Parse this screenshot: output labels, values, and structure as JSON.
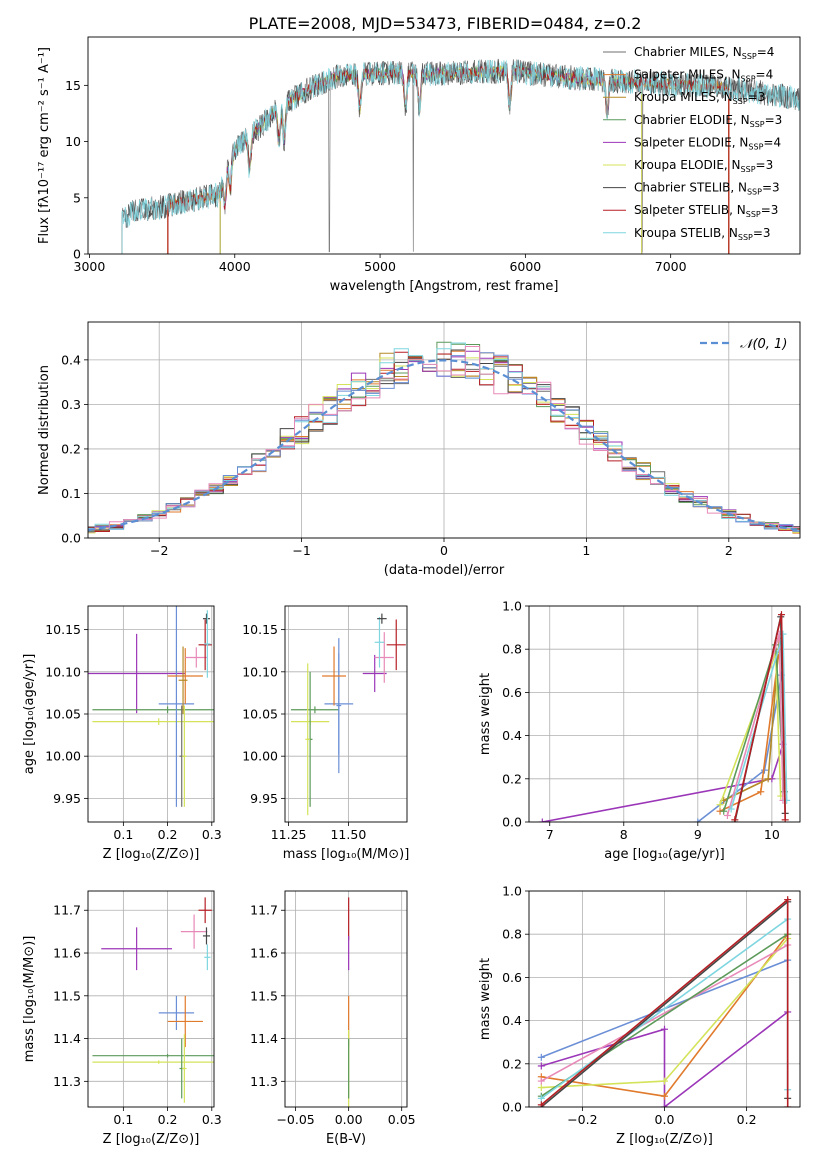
{
  "figure_title": "PLATE=2008, MJD=53473, FIBERID=0484, z=0.2",
  "palette": {
    "c1": "#6f6f6f",
    "c2": "#e07a2c",
    "c3": "#b58a27",
    "c4": "#5c9a5a",
    "c5": "#9b36b8",
    "c6": "#d4e35a",
    "c7": "#454545",
    "c8": "#b51f24",
    "c9": "#7fd6e0",
    "c10": "#6b8fd6",
    "c11": "#e88ab8",
    "dashed": "#5b8fd4"
  },
  "chart_data": [
    {
      "id": "spectrum",
      "type": "line",
      "xlabel": "wavelength [Angstrom, rest frame]",
      "ylabel": "Flux [fλ10⁻¹⁷ erg cm⁻² s⁻¹ A⁻¹]",
      "xlim": [
        2990,
        7890
      ],
      "ylim": [
        0,
        19.3
      ],
      "xticks": [
        3000,
        4000,
        5000,
        6000,
        7000
      ],
      "yticks": [
        0,
        5,
        10,
        15
      ],
      "grid": false,
      "legend_position": "right",
      "continuum": [
        [
          3225,
          3.0
        ],
        [
          3300,
          3.8
        ],
        [
          3500,
          4.2
        ],
        [
          3700,
          4.8
        ],
        [
          3900,
          5.3
        ],
        [
          3950,
          8.5
        ],
        [
          4050,
          10.0
        ],
        [
          4150,
          11.0
        ],
        [
          4300,
          13.0
        ],
        [
          4500,
          14.6
        ],
        [
          4700,
          15.8
        ],
        [
          4900,
          16.0
        ],
        [
          5100,
          16.1
        ],
        [
          5300,
          16.0
        ],
        [
          5500,
          16.1
        ],
        [
          5700,
          16.2
        ],
        [
          5900,
          16.3
        ],
        [
          6100,
          16.0
        ],
        [
          6300,
          15.7
        ],
        [
          6500,
          15.5
        ],
        [
          6700,
          15.3
        ],
        [
          6900,
          15.2
        ],
        [
          7100,
          15.0
        ],
        [
          7300,
          14.9
        ],
        [
          7500,
          14.6
        ],
        [
          7700,
          14.2
        ],
        [
          7880,
          13.8
        ]
      ],
      "absorption_lines": [
        3934,
        3968,
        4102,
        4304,
        4340,
        4861,
        5175,
        5270,
        5892,
        6563
      ],
      "spikes": [
        4650,
        5229,
        6802
      ],
      "series": [
        {
          "name": "Chabrier MILES, N_SSP=4",
          "label_main": "Chabrier MILES, N",
          "n_ssp": "4",
          "color_key": "c1",
          "start": 3225,
          "end": 7890
        },
        {
          "name": "Salpeter MILES, N_SSP=4",
          "label_main": "Salpeter MILES, N",
          "n_ssp": "4",
          "color_key": "c2",
          "start": 3540,
          "end": 7400
        },
        {
          "name": "Kroupa MILES, N_SSP=3",
          "label_main": "Kroupa MILES, N",
          "n_ssp": "3",
          "color_key": "c3",
          "start": 3540,
          "end": 7400
        },
        {
          "name": "Chabrier ELODIE, N_SSP=3",
          "label_main": "Chabrier ELODIE, N",
          "n_ssp": "3",
          "color_key": "c4",
          "start": 3900,
          "end": 6800
        },
        {
          "name": "Salpeter ELODIE, N_SSP=4",
          "label_main": "Salpeter ELODIE, N",
          "n_ssp": "4",
          "color_key": "c5",
          "start": 3900,
          "end": 6800
        },
        {
          "name": "Kroupa ELODIE, N_SSP=3",
          "label_main": "Kroupa ELODIE, N",
          "n_ssp": "3",
          "color_key": "c6",
          "start": 3900,
          "end": 6800
        },
        {
          "name": "Chabrier STELIB, N_SSP=3",
          "label_main": "Chabrier STELIB, N",
          "n_ssp": "3",
          "color_key": "c7",
          "start": 3225,
          "end": 7890
        },
        {
          "name": "Salpeter STELIB, N_SSP=3",
          "label_main": "Salpeter STELIB, N",
          "n_ssp": "3",
          "color_key": "c8",
          "start": 3540,
          "end": 7400
        },
        {
          "name": "Kroupa STELIB, N_SSP=3",
          "label_main": "Kroupa STELIB, N",
          "n_ssp": "3",
          "color_key": "c9",
          "start": 3225,
          "end": 7890
        }
      ]
    },
    {
      "id": "residuals",
      "type": "histogram",
      "xlabel": "(data-model)/error",
      "ylabel": "Normed distribution",
      "xlim": [
        -2.5,
        2.5
      ],
      "ylim": [
        0,
        0.485
      ],
      "xticks": [
        -2,
        -1,
        0,
        1,
        2
      ],
      "yticks": [
        0.0,
        0.1,
        0.2,
        0.3,
        0.4
      ],
      "grid": true,
      "bin_width": 0.1,
      "legend": "𝒩(0, 1)",
      "legend_position": "top-right",
      "reference_curve": "normal(0,1)",
      "series_colors": [
        "c1",
        "c2",
        "c3",
        "c4",
        "c5",
        "c6",
        "c7",
        "c8",
        "c9",
        "c10",
        "c11"
      ]
    },
    {
      "id": "age_vs_Z",
      "type": "errorbar",
      "xlabel": "Z [log₁₀(Z/Z⊙)]",
      "ylabel": "age  [log₁₀(age/yr)]",
      "xlim": [
        0.02,
        0.305
      ],
      "ylim": [
        9.922,
        10.178
      ],
      "xticks": [
        0.1,
        0.2,
        0.3
      ],
      "yticks": [
        9.95,
        10.0,
        10.05,
        10.1,
        10.15
      ],
      "grid": true,
      "points": [
        {
          "color_key": "c5",
          "x": 0.13,
          "xerr": 0.11,
          "y": 10.098,
          "yerr": 0.047
        },
        {
          "color_key": "c4",
          "x": 0.2,
          "xerr": 0.17,
          "y": 10.055,
          "yerr": 0.004
        },
        {
          "color_key": "c6",
          "x": 0.18,
          "xerr": 0.15,
          "y": 10.041,
          "yerr": 0.004
        },
        {
          "color_key": "c10",
          "x": 0.22,
          "xerr": 0.04,
          "y": 10.062,
          "yerr": 0.122
        },
        {
          "color_key": "c2",
          "x": 0.24,
          "xerr": 0.04,
          "y": 10.095,
          "yerr": 0.033
        },
        {
          "color_key": "c3",
          "x": 0.235,
          "xerr": 0.01,
          "y": 10.09,
          "yerr": 0.04
        },
        {
          "color_key": "c1",
          "x": 0.232,
          "xerr": 0.005,
          "y": 10.0,
          "yerr": 0.06
        },
        {
          "color_key": "c6",
          "x": 0.238,
          "xerr": 0.005,
          "y": 10.0,
          "yerr": 0.06
        },
        {
          "color_key": "c11",
          "x": 0.265,
          "xerr": 0.025,
          "y": 10.117,
          "yerr": 0.012
        },
        {
          "color_key": "c8",
          "x": 0.285,
          "xerr": 0.015,
          "y": 10.132,
          "yerr": 0.03
        },
        {
          "color_key": "c7",
          "x": 0.288,
          "xerr": 0.008,
          "y": 10.163,
          "yerr": 0.006
        },
        {
          "color_key": "c9",
          "x": 0.29,
          "xerr": 0.007,
          "y": 10.133,
          "yerr": 0.04
        }
      ]
    },
    {
      "id": "age_vs_mass",
      "type": "errorbar",
      "xlabel": "mass [log₁₀(M/M⊙)]",
      "ylabel": "",
      "xlim": [
        11.235,
        11.745
      ],
      "ylim": [
        9.922,
        10.178
      ],
      "xticks": [
        11.25,
        11.5
      ],
      "yticks": [
        9.95,
        10.0,
        10.05,
        10.1,
        10.15
      ],
      "grid": true,
      "points": [
        {
          "color_key": "c4",
          "x": 11.36,
          "xerr": 0.1,
          "y": 10.055,
          "yerr": 0.004
        },
        {
          "color_key": "c6",
          "x": 11.34,
          "xerr": 0.08,
          "y": 10.041,
          "yerr": 0.004
        },
        {
          "color_key": "c4",
          "x": 11.34,
          "xerr": 0.01,
          "y": 10.02,
          "yerr": 0.08
        },
        {
          "color_key": "c6",
          "x": 11.33,
          "xerr": 0.01,
          "y": 10.02,
          "yerr": 0.09
        },
        {
          "color_key": "c10",
          "x": 11.46,
          "xerr": 0.06,
          "y": 10.062,
          "yerr": 0.06
        },
        {
          "color_key": "c10",
          "x": 11.46,
          "xerr": 0.01,
          "y": 10.06,
          "yerr": 0.08
        },
        {
          "color_key": "c2",
          "x": 11.44,
          "xerr": 0.05,
          "y": 10.095,
          "yerr": 0.035
        },
        {
          "color_key": "c5",
          "x": 11.61,
          "xerr": 0.05,
          "y": 10.098,
          "yerr": 0.022
        },
        {
          "color_key": "c11",
          "x": 11.65,
          "xerr": 0.04,
          "y": 10.117,
          "yerr": 0.03
        },
        {
          "color_key": "c9",
          "x": 11.63,
          "xerr": 0.02,
          "y": 10.135,
          "yerr": 0.03
        },
        {
          "color_key": "c8",
          "x": 11.7,
          "xerr": 0.04,
          "y": 10.132,
          "yerr": 0.03
        },
        {
          "color_key": "c7",
          "x": 11.64,
          "xerr": 0.02,
          "y": 10.163,
          "yerr": 0.006
        }
      ]
    },
    {
      "id": "weight_vs_age",
      "type": "line",
      "xlabel": "age  [log₁₀(age/yr)]",
      "ylabel": "mass weight",
      "xlim": [
        6.72,
        10.38
      ],
      "ylim": [
        0,
        1.0
      ],
      "xticks": [
        7,
        8,
        9,
        10
      ],
      "yticks": [
        0.0,
        0.2,
        0.4,
        0.6,
        0.8,
        1.0
      ],
      "grid": true,
      "series": [
        {
          "color_key": "c5",
          "points": [
            [
              6.9,
              0.0
            ],
            [
              10.0,
              0.2
            ],
            [
              10.15,
              0.36
            ]
          ]
        },
        {
          "color_key": "c10",
          "points": [
            [
              9.0,
              0.0
            ],
            [
              9.9,
              0.24
            ],
            [
              10.13,
              0.68
            ]
          ]
        },
        {
          "color_key": "c2",
          "points": [
            [
              9.3,
              0.05
            ],
            [
              9.85,
              0.14
            ],
            [
              10.1,
              0.8
            ]
          ]
        },
        {
          "color_key": "c3",
          "points": [
            [
              9.35,
              0.1
            ],
            [
              9.95,
              0.2
            ],
            [
              10.1,
              0.85
            ]
          ]
        },
        {
          "color_key": "c6",
          "points": [
            [
              9.3,
              0.08
            ],
            [
              10.05,
              0.78
            ],
            [
              10.12,
              0.12
            ]
          ]
        },
        {
          "color_key": "c4",
          "points": [
            [
              9.35,
              0.05
            ],
            [
              10.05,
              0.82
            ],
            [
              10.17,
              0.14
            ]
          ]
        },
        {
          "color_key": "c11",
          "points": [
            [
              9.4,
              0.03
            ],
            [
              10.1,
              0.87
            ],
            [
              10.15,
              0.1
            ]
          ]
        },
        {
          "color_key": "c9",
          "points": [
            [
              9.45,
              0.06
            ],
            [
              10.15,
              0.87
            ],
            [
              10.2,
              0.1
            ]
          ]
        },
        {
          "color_key": "c7",
          "points": [
            [
              9.5,
              0.0
            ],
            [
              10.12,
              0.95
            ],
            [
              10.18,
              0.04
            ]
          ]
        },
        {
          "color_key": "c8",
          "points": [
            [
              9.5,
              0.01
            ],
            [
              10.13,
              0.96
            ],
            [
              10.18,
              0.01
            ]
          ]
        }
      ]
    },
    {
      "id": "mass_vs_Z",
      "type": "errorbar",
      "xlabel": "Z [log₁₀(Z/Z⊙)]",
      "ylabel": "mass [log₁₀(M/M⊙)]",
      "xlim": [
        0.02,
        0.305
      ],
      "ylim": [
        11.24,
        11.745
      ],
      "xticks": [
        0.1,
        0.2,
        0.3
      ],
      "yticks": [
        11.3,
        11.4,
        11.5,
        11.6,
        11.7
      ],
      "grid": true,
      "points": [
        {
          "color_key": "c5",
          "x": 0.13,
          "xerr": 0.08,
          "y": 11.61,
          "yerr": 0.05
        },
        {
          "color_key": "c4",
          "x": 0.2,
          "xerr": 0.17,
          "y": 11.36,
          "yerr": 0.004
        },
        {
          "color_key": "c6",
          "x": 0.18,
          "xerr": 0.15,
          "y": 11.345,
          "yerr": 0.004
        },
        {
          "color_key": "c10",
          "x": 0.22,
          "xerr": 0.04,
          "y": 11.46,
          "yerr": 0.04
        },
        {
          "color_key": "c2",
          "x": 0.24,
          "xerr": 0.04,
          "y": 11.44,
          "yerr": 0.06
        },
        {
          "color_key": "c4",
          "x": 0.232,
          "xerr": 0.005,
          "y": 11.33,
          "yerr": 0.07
        },
        {
          "color_key": "c6",
          "x": 0.238,
          "xerr": 0.005,
          "y": 11.33,
          "yerr": 0.08
        },
        {
          "color_key": "c11",
          "x": 0.26,
          "xerr": 0.03,
          "y": 11.65,
          "yerr": 0.04
        },
        {
          "color_key": "c8",
          "x": 0.285,
          "xerr": 0.015,
          "y": 11.7,
          "yerr": 0.03
        },
        {
          "color_key": "c7",
          "x": 0.288,
          "xerr": 0.008,
          "y": 11.64,
          "yerr": 0.02
        },
        {
          "color_key": "c9",
          "x": 0.29,
          "xerr": 0.007,
          "y": 11.59,
          "yerr": 0.03
        }
      ]
    },
    {
      "id": "mass_vs_EBV",
      "type": "errorbar",
      "xlabel": "E(B-V)",
      "ylabel": "",
      "xlim": [
        -0.06,
        0.055
      ],
      "ylim": [
        11.24,
        11.745
      ],
      "xticks": [
        -0.05,
        0.0,
        0.05
      ],
      "yticks": [
        11.3,
        11.4,
        11.5,
        11.6,
        11.7
      ],
      "grid": true,
      "points": [
        {
          "color_key": "c8",
          "x": 0.0,
          "xerr": 0.0,
          "y": 11.68,
          "yerr": 0.05
        },
        {
          "color_key": "c5",
          "x": 0.0,
          "xerr": 0.0,
          "y": 11.6,
          "yerr": 0.04
        },
        {
          "color_key": "c2",
          "x": 0.0,
          "xerr": 0.0,
          "y": 11.44,
          "yerr": 0.06
        },
        {
          "color_key": "c6",
          "x": 0.0,
          "xerr": 0.0,
          "y": 11.33,
          "yerr": 0.09
        },
        {
          "color_key": "c4",
          "x": 0.0,
          "xerr": 0.0,
          "y": 11.33,
          "yerr": 0.07
        }
      ]
    },
    {
      "id": "weight_vs_Z",
      "type": "line",
      "xlabel": "Z [log₁₀(Z/Z⊙)]",
      "ylabel": "mass weight",
      "xlim": [
        -0.33,
        0.33
      ],
      "ylim": [
        0,
        1.0
      ],
      "xticks": [
        -0.2,
        0.0,
        0.2
      ],
      "yticks": [
        0.0,
        0.2,
        0.4,
        0.6,
        0.8,
        1.0
      ],
      "grid": true,
      "series": [
        {
          "color_key": "c5",
          "points": [
            [
              -0.3,
              0.19
            ],
            [
              0.0,
              0.36
            ],
            [
              0.0,
              0.0
            ],
            [
              0.3,
              0.44
            ]
          ]
        },
        {
          "color_key": "c10",
          "points": [
            [
              -0.3,
              0.23
            ],
            [
              0.3,
              0.68
            ]
          ]
        },
        {
          "color_key": "c2",
          "points": [
            [
              -0.3,
              0.14
            ],
            [
              0.0,
              0.05
            ],
            [
              0.3,
              0.8
            ]
          ]
        },
        {
          "color_key": "c6",
          "points": [
            [
              -0.3,
              0.09
            ],
            [
              0.0,
              0.12
            ],
            [
              0.3,
              0.78
            ]
          ]
        },
        {
          "color_key": "c11",
          "points": [
            [
              -0.3,
              0.12
            ],
            [
              0.3,
              0.75
            ]
          ]
        },
        {
          "color_key": "c4",
          "points": [
            [
              -0.3,
              0.05
            ],
            [
              0.3,
              0.8
            ]
          ]
        },
        {
          "color_key": "c9",
          "points": [
            [
              -0.3,
              0.04
            ],
            [
              0.3,
              0.87
            ],
            [
              0.3,
              0.08
            ]
          ]
        },
        {
          "color_key": "c7",
          "points": [
            [
              -0.3,
              0.0
            ],
            [
              0.3,
              0.95
            ],
            [
              0.3,
              0.04
            ]
          ]
        },
        {
          "color_key": "c8",
          "points": [
            [
              -0.3,
              0.01
            ],
            [
              0.3,
              0.96
            ],
            [
              0.3,
              0.0
            ]
          ]
        }
      ]
    }
  ]
}
